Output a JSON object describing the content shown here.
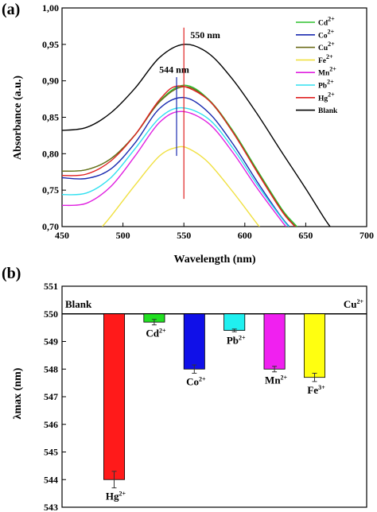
{
  "chart_data": [
    {
      "panel_label": "(a)",
      "type": "line",
      "xlabel": "Wavelength (nm)",
      "ylabel": "Absorbance (a.u.)",
      "xlim": [
        450,
        700
      ],
      "ylim": [
        0.7,
        1.0
      ],
      "x_ticks": [
        "450",
        "500",
        "550",
        "600",
        "650",
        "700"
      ],
      "y_ticks": [
        "0,70",
        "0,75",
        "0,80",
        "0,85",
        "0,90",
        "0,95",
        "1,00"
      ],
      "legend_position": "top-right",
      "annotations": [
        {
          "text": "550 nm",
          "x": 550
        },
        {
          "text": "544 nm",
          "x": 544
        }
      ],
      "series": [
        {
          "name": "Cd",
          "sup": "2+",
          "color": "#2fc02f",
          "points": [
            [
              450,
              0.776
            ],
            [
              470,
              0.778
            ],
            [
              490,
              0.793
            ],
            [
              510,
              0.826
            ],
            [
              530,
              0.872
            ],
            [
              550,
              0.894
            ],
            [
              570,
              0.875
            ],
            [
              590,
              0.832
            ],
            [
              610,
              0.778
            ],
            [
              630,
              0.725
            ],
            [
              640,
              0.705
            ],
            [
              650,
              0.688
            ]
          ]
        },
        {
          "name": "Co",
          "sup": "2+",
          "color": "#1a2ab0",
          "points": [
            [
              450,
              0.767
            ],
            [
              470,
              0.766
            ],
            [
              490,
              0.779
            ],
            [
              510,
              0.815
            ],
            [
              530,
              0.862
            ],
            [
              550,
              0.877
            ],
            [
              570,
              0.857
            ],
            [
              590,
              0.814
            ],
            [
              610,
              0.762
            ],
            [
              630,
              0.713
            ],
            [
              640,
              0.694
            ]
          ]
        },
        {
          "name": "Cu",
          "sup": "2+",
          "color": "#6b6b1a",
          "points": [
            [
              450,
              0.776
            ],
            [
              470,
              0.778
            ],
            [
              490,
              0.793
            ],
            [
              510,
              0.826
            ],
            [
              530,
              0.871
            ],
            [
              550,
              0.892
            ],
            [
              570,
              0.874
            ],
            [
              590,
              0.83
            ],
            [
              610,
              0.776
            ],
            [
              630,
              0.723
            ],
            [
              640,
              0.703
            ],
            [
              650,
              0.686
            ]
          ]
        },
        {
          "name": "Fe",
          "sup": "2+",
          "color": "#f0e040",
          "points": [
            [
              483,
              0.7
            ],
            [
              490,
              0.714
            ],
            [
              510,
              0.757
            ],
            [
              530,
              0.797
            ],
            [
              545,
              0.809
            ],
            [
              555,
              0.806
            ],
            [
              570,
              0.788
            ],
            [
              590,
              0.748
            ],
            [
              610,
              0.704
            ],
            [
              615,
              0.694
            ]
          ]
        },
        {
          "name": "Mn",
          "sup": "2+",
          "color": "#e020e0",
          "points": [
            [
              450,
              0.729
            ],
            [
              470,
              0.732
            ],
            [
              490,
              0.755
            ],
            [
              510,
              0.797
            ],
            [
              530,
              0.843
            ],
            [
              548,
              0.858
            ],
            [
              570,
              0.842
            ],
            [
              590,
              0.802
            ],
            [
              610,
              0.753
            ],
            [
              630,
              0.708
            ],
            [
              635,
              0.698
            ]
          ]
        },
        {
          "name": "Pb",
          "sup": "2+",
          "color": "#30e0f0",
          "points": [
            [
              450,
              0.744
            ],
            [
              470,
              0.746
            ],
            [
              490,
              0.767
            ],
            [
              510,
              0.807
            ],
            [
              530,
              0.849
            ],
            [
              548,
              0.863
            ],
            [
              570,
              0.848
            ],
            [
              590,
              0.808
            ],
            [
              610,
              0.758
            ],
            [
              630,
              0.712
            ],
            [
              638,
              0.696
            ]
          ]
        },
        {
          "name": "Hg",
          "sup": "2+",
          "color": "#e02020",
          "points": [
            [
              450,
              0.77
            ],
            [
              470,
              0.772
            ],
            [
              490,
              0.79
            ],
            [
              510,
              0.826
            ],
            [
              530,
              0.874
            ],
            [
              546,
              0.893
            ],
            [
              570,
              0.874
            ],
            [
              590,
              0.83
            ],
            [
              610,
              0.775
            ],
            [
              630,
              0.722
            ],
            [
              640,
              0.702
            ],
            [
              645,
              0.694
            ]
          ]
        },
        {
          "name": "Blank",
          "sup": "",
          "color": "#000000",
          "points": [
            [
              450,
              0.832
            ],
            [
              470,
              0.836
            ],
            [
              490,
              0.856
            ],
            [
              510,
              0.89
            ],
            [
              530,
              0.932
            ],
            [
              550,
              0.95
            ],
            [
              570,
              0.938
            ],
            [
              590,
              0.902
            ],
            [
              610,
              0.855
            ],
            [
              630,
              0.803
            ],
            [
              650,
              0.752
            ],
            [
              665,
              0.712
            ],
            [
              670,
              0.7
            ]
          ]
        }
      ]
    },
    {
      "panel_label": "(b)",
      "type": "bar",
      "ylabel": "λmax (nm)",
      "ylim": [
        543,
        551
      ],
      "y_ticks": [
        "543",
        "544",
        "545",
        "546",
        "547",
        "548",
        "549",
        "550",
        "551"
      ],
      "baseline": 550,
      "edge_labels": [
        {
          "text": "Blank",
          "sup": "",
          "side": "left"
        },
        {
          "text": "Cu",
          "sup": "2+",
          "side": "right"
        }
      ],
      "bars": [
        {
          "category": "Hg",
          "sup": "2+",
          "value": 544.0,
          "error": 0.3,
          "color": "#ff1a1a"
        },
        {
          "category": "Cd",
          "sup": "2+",
          "value": 549.7,
          "error": 0.1,
          "color": "#22e022"
        },
        {
          "category": "Co",
          "sup": "2+",
          "value": 548.0,
          "error": 0.15,
          "color": "#1010e8"
        },
        {
          "category": "Pb",
          "sup": "2+",
          "value": 549.4,
          "error": 0.05,
          "color": "#20f0f0"
        },
        {
          "category": "Mn",
          "sup": "2+",
          "value": 548.0,
          "error": 0.1,
          "color": "#f020f0"
        },
        {
          "category": "Fe",
          "sup": "3+",
          "value": 547.7,
          "error": 0.15,
          "color": "#ffff10"
        }
      ]
    }
  ]
}
